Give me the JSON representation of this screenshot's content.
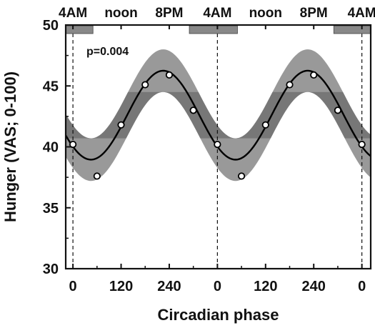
{
  "chart_data": {
    "type": "line",
    "title": "",
    "xlabel": "Circadian phase",
    "ylabel": "Hunger (VAS; 0-100)",
    "xlim": [
      -18,
      742
    ],
    "ylim": [
      30,
      50
    ],
    "x_ticks": [
      0,
      120,
      240,
      360,
      480,
      600,
      720
    ],
    "x_tick_labels": [
      "0",
      "120",
      "240",
      "0",
      "120",
      "240",
      "0"
    ],
    "y_ticks": [
      30,
      35,
      40,
      45,
      50
    ],
    "y_tick_labels": [
      "30",
      "35",
      "40",
      "45",
      "50"
    ],
    "top_axis_ticks": [
      0,
      120,
      240,
      360,
      480,
      600,
      720
    ],
    "top_axis_labels": [
      "4AM",
      "noon",
      "8PM",
      "4AM",
      "noon",
      "8PM",
      "4AM"
    ],
    "annotation": "p=0.004",
    "grid": false,
    "dashed_vertical_lines_at": [
      0,
      360,
      720
    ],
    "sleep_bars": [
      {
        "start": -18,
        "end": 50
      },
      {
        "start": 290,
        "end": 410
      },
      {
        "start": 650,
        "end": 742
      }
    ],
    "series": [
      {
        "kind": "points",
        "x": [
          0,
          60,
          120,
          180,
          240,
          300,
          360,
          420,
          480,
          540,
          600,
          660,
          720
        ],
        "y": [
          40.2,
          37.6,
          41.8,
          45.1,
          45.9,
          43.0,
          40.2,
          37.6,
          41.8,
          45.1,
          45.9,
          43.0,
          40.2
        ]
      },
      {
        "kind": "fit",
        "mesor": 42.6,
        "amplitude": 3.65,
        "peak_phase": 225,
        "period": 360
      },
      {
        "kind": "band",
        "upper_offset": 1.75,
        "lower_offset": 1.75
      }
    ],
    "colors": {
      "band": "#999999",
      "band_overlap": "#777777",
      "fit_line": "#000000",
      "points_fill": "#ffffff",
      "points_stroke": "#000000",
      "sleep_bar": "#888888",
      "axis": "#111111"
    }
  }
}
